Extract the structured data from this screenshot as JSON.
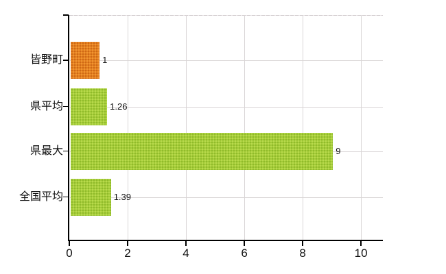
{
  "chart_data": {
    "type": "bar",
    "orientation": "horizontal",
    "title": "",
    "categories": [
      "皆野町",
      "県平均",
      "県最大",
      "全国平均"
    ],
    "values": [
      1,
      1.26,
      9,
      1.39
    ],
    "value_labels": [
      "1",
      "1.26",
      "9",
      "1.39"
    ],
    "series": [
      {
        "name": "",
        "values": [
          1,
          1.26,
          9,
          1.39
        ]
      }
    ],
    "bar_palette": [
      "orange",
      "green",
      "green",
      "green"
    ],
    "x_ticks": [
      0,
      2,
      4,
      6,
      8,
      10
    ],
    "x_tick_labels": [
      "0",
      "2",
      "4",
      "6",
      "8",
      "10"
    ],
    "xlim": [
      0,
      10.75
    ],
    "grid": true,
    "legend": false
  },
  "colors": {
    "background": "#ffffff",
    "axis": "#000000",
    "gridline": "#d9d5d6",
    "text": "#111111",
    "bar_orange_base": "#e5811e",
    "bar_orange_dot": "#c55f16",
    "bar_green_base": "#a6cd39",
    "bar_green_dot": "#89b328"
  }
}
